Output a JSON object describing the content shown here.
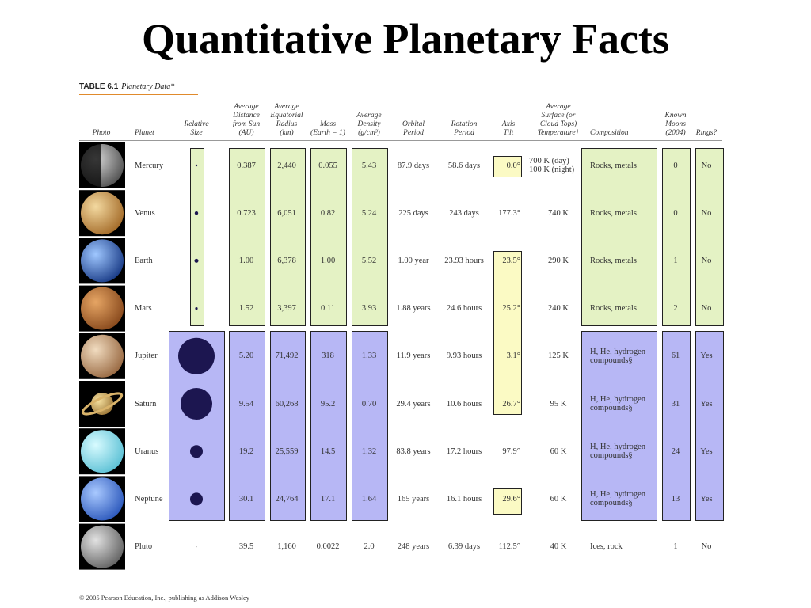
{
  "title": "Quantitative Planetary Facts",
  "table": {
    "label": "TABLE 6.1",
    "caption": "Planetary Data*",
    "headers": [
      "Photo",
      "Planet",
      "Relative\nSize",
      "Average\nDistance\nfrom Sun\n(AU)",
      "Average\nEquatorial\nRadius\n(km)",
      "Mass\n(Earth = 1)",
      "Average\nDensity\n(g/cm³)",
      "Orbital\nPeriod",
      "Rotation\nPeriod",
      "Axis\nTilt",
      "Average\nSurface (or\nCloud Tops)\nTemperature†",
      "Composition",
      "Known\nMoons\n(2004)",
      "Rings?"
    ],
    "rows": [
      [
        "Mercury",
        "0.387",
        "2,440",
        "0.055",
        "5.43",
        "87.9 days",
        "58.6 days",
        "0.0°",
        "700 K (day)\n100 K (night)",
        "Rocks, metals",
        "0",
        "No"
      ],
      [
        "Venus",
        "0.723",
        "6,051",
        "0.82",
        "5.24",
        "225 days",
        "243 days",
        "177.3°",
        "740 K",
        "Rocks, metals",
        "0",
        "No"
      ],
      [
        "Earth",
        "1.00",
        "6,378",
        "1.00",
        "5.52",
        "1.00 year",
        "23.93 hours",
        "23.5°",
        "290 K",
        "Rocks, metals",
        "1",
        "No"
      ],
      [
        "Mars",
        "1.52",
        "3,397",
        "0.11",
        "3.93",
        "1.88 years",
        "24.6 hours",
        "25.2°",
        "240 K",
        "Rocks, metals",
        "2",
        "No"
      ],
      [
        "Jupiter",
        "5.20",
        "71,492",
        "318",
        "1.33",
        "11.9 years",
        "9.93 hours",
        "3.1°",
        "125 K",
        "H, He, hydrogen\ncompounds§",
        "61",
        "Yes"
      ],
      [
        "Saturn",
        "9.54",
        "60,268",
        "95.2",
        "0.70",
        "29.4 years",
        "10.6 hours",
        "26.7°",
        "95 K",
        "H, He, hydrogen\ncompounds§",
        "31",
        "Yes"
      ],
      [
        "Uranus",
        "19.2",
        "25,559",
        "14.5",
        "1.32",
        "83.8 years",
        "17.2 hours",
        "97.9°",
        "60 K",
        "H, He, hydrogen\ncompounds§",
        "24",
        "Yes"
      ],
      [
        "Neptune",
        "30.1",
        "24,764",
        "17.1",
        "1.64",
        "165 years",
        "16.1 hours",
        "29.6°",
        "60 K",
        "H, He, hydrogen\ncompounds§",
        "13",
        "Yes"
      ],
      [
        "Pluto",
        "39.5",
        "1,160",
        "0.0022",
        "2.0",
        "248 years",
        "6.39 days",
        "112.5°",
        "40 K",
        "Ices, rock",
        "1",
        "No"
      ]
    ]
  },
  "footer": "© 2005 Pearson Education, Inc., publishing as Addison Wesley"
}
